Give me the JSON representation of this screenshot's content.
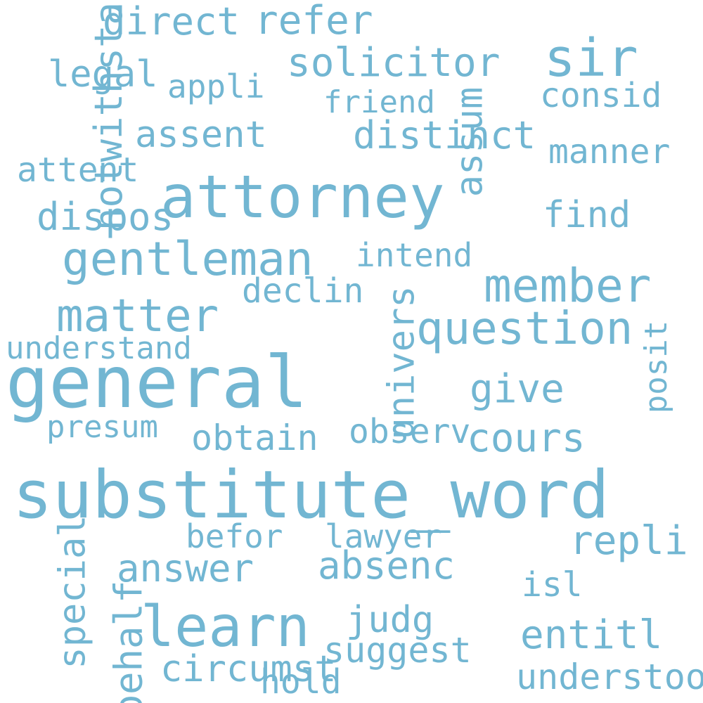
{
  "text_color": "#72b6d2",
  "background": "#ffffff",
  "words": [
    "substitute_word",
    "general",
    "attorney",
    "learn",
    "gentleman",
    "member",
    "sir",
    "question",
    "matter",
    "solicitor",
    "legal",
    "refer",
    "direct",
    "appli",
    "assum",
    "friend",
    "assent",
    "distinct",
    "consid",
    "manner",
    "attent",
    "dispos",
    "find",
    "intend",
    "declin",
    "understand",
    "notwithstand",
    "give",
    "univers",
    "presum",
    "obtain",
    "observ",
    "cours",
    "repli",
    "posit",
    "befor",
    "lawyer",
    "absenc",
    "answer",
    "isl",
    "special",
    "judg",
    "entitl",
    "suggest",
    "circumst",
    "hold",
    "understood",
    "behalf"
  ]
}
